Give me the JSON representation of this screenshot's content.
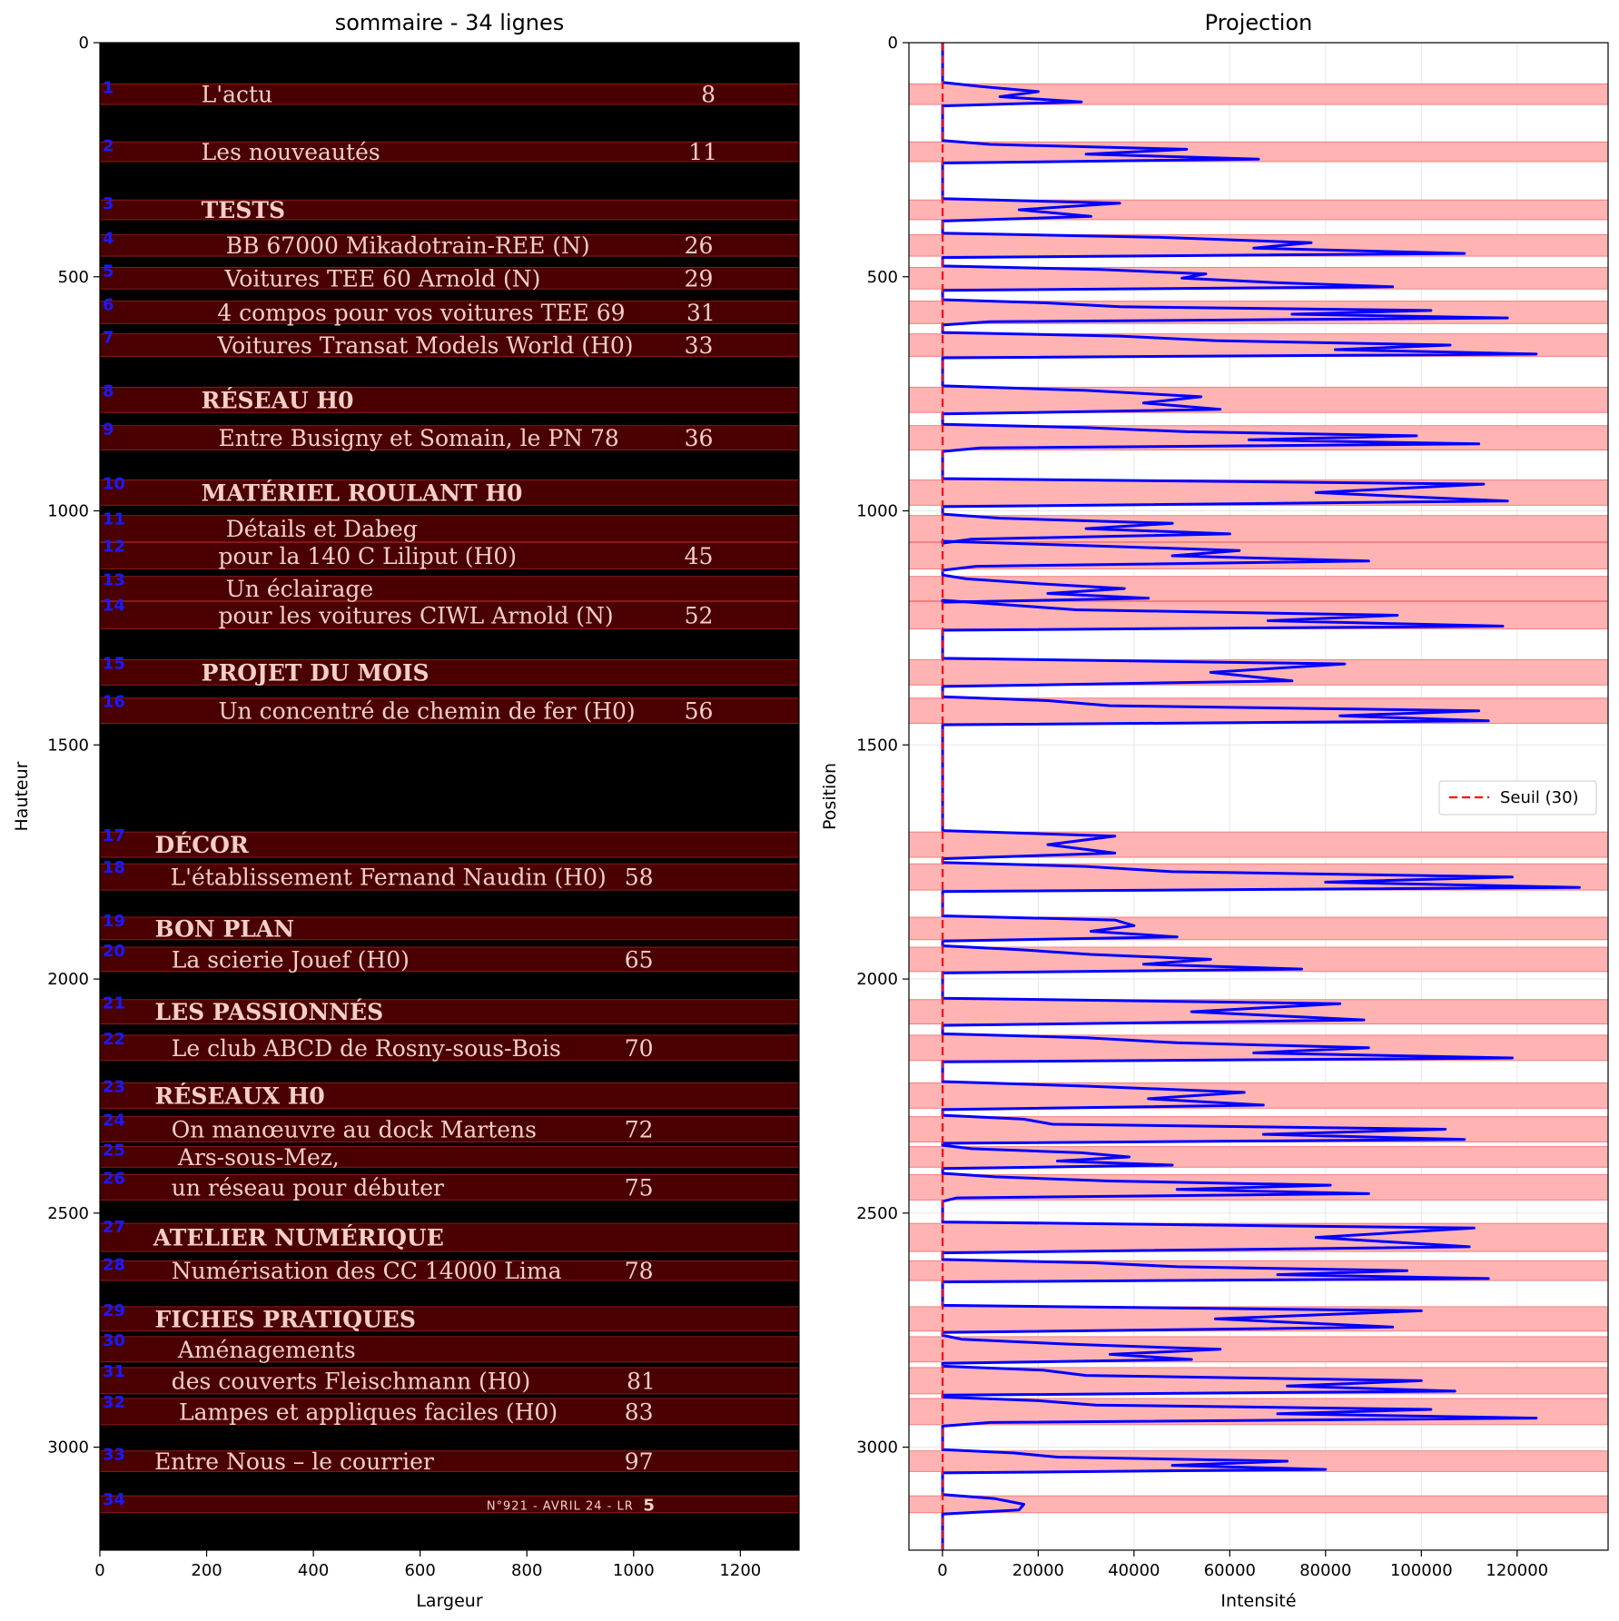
{
  "chart_data": [
    {
      "type": "image",
      "title": "sommaire - 34 lignes",
      "xlabel": "Largeur",
      "ylabel": "Hauteur",
      "xlim": [
        0,
        1310
      ],
      "ylim": [
        3220,
        0
      ],
      "xticks": [
        0,
        200,
        400,
        600,
        800,
        1000,
        1200
      ],
      "yticks": [
        0,
        500,
        1000,
        1500,
        2000,
        2500,
        3000
      ],
      "bands": [
        [
          88,
          132
        ],
        [
          212,
          254
        ],
        [
          336,
          378
        ],
        [
          410,
          456
        ],
        [
          480,
          526
        ],
        [
          552,
          600
        ],
        [
          622,
          670
        ],
        [
          736,
          790
        ],
        [
          818,
          870
        ],
        [
          934,
          988
        ],
        [
          1010,
          1066
        ],
        [
          1068,
          1124
        ],
        [
          1140,
          1192
        ],
        [
          1194,
          1252
        ],
        [
          1318,
          1372
        ],
        [
          1400,
          1454
        ],
        [
          1686,
          1740
        ],
        [
          1754,
          1810
        ],
        [
          1868,
          1916
        ],
        [
          1932,
          1984
        ],
        [
          2044,
          2096
        ],
        [
          2120,
          2174
        ],
        [
          2222,
          2276
        ],
        [
          2294,
          2348
        ],
        [
          2358,
          2402
        ],
        [
          2418,
          2472
        ],
        [
          2522,
          2582
        ],
        [
          2602,
          2644
        ],
        [
          2700,
          2752
        ],
        [
          2764,
          2818
        ],
        [
          2830,
          2886
        ],
        [
          2896,
          2952
        ],
        [
          3008,
          3052
        ],
        [
          3104,
          3140
        ]
      ],
      "line_numbers": [
        "1",
        "2",
        "3",
        "4",
        "5",
        "6",
        "7",
        "8",
        "9",
        "10",
        "11",
        "12",
        "13",
        "14",
        "15",
        "16",
        "17",
        "18",
        "19",
        "20",
        "21",
        "22",
        "23",
        "24",
        "25",
        "26",
        "27",
        "28",
        "29",
        "30",
        "31",
        "32",
        "33",
        "34"
      ],
      "entries": [
        {
          "line": 1,
          "text": "L'actu",
          "page": "8",
          "bold": false,
          "x": 190,
          "px": 1140
        },
        {
          "line": 2,
          "text": "Les nouveautés",
          "page": "11",
          "bold": false,
          "x": 190,
          "px": 1130
        },
        {
          "line": 3,
          "text": "TESTS",
          "page": "",
          "bold": true,
          "x": 190,
          "px": 0
        },
        {
          "line": 4,
          "text": "BB 67000 Mikadotrain-REE (N)",
          "page": "26",
          "bold": false,
          "x": 236,
          "px": 1122
        },
        {
          "line": 5,
          "text": "Voitures TEE 60 Arnold (N)",
          "page": "29",
          "bold": false,
          "x": 234,
          "px": 1122
        },
        {
          "line": 6,
          "text": "4 compos pour vos voitures TEE 69",
          "page": "31",
          "bold": false,
          "x": 220,
          "px": 1126
        },
        {
          "line": 7,
          "text": "Voitures Transat Models World (H0)",
          "page": "33",
          "bold": false,
          "x": 220,
          "px": 1122
        },
        {
          "line": 8,
          "text": "RÉSEAU H0",
          "page": "",
          "bold": true,
          "x": 190,
          "px": 0
        },
        {
          "line": 9,
          "text": "Entre Busigny et Somain, le PN 78",
          "page": "36",
          "bold": false,
          "x": 222,
          "px": 1122
        },
        {
          "line": 10,
          "text": "MATÉRIEL ROULANT H0",
          "page": "",
          "bold": true,
          "x": 190,
          "px": 0
        },
        {
          "line": 11,
          "text": "Détails et Dabeg",
          "page": "",
          "bold": false,
          "x": 236,
          "px": 0
        },
        {
          "line": 12,
          "text": "pour la 140 C Liliput (H0)",
          "page": "45",
          "bold": false,
          "x": 222,
          "px": 1122
        },
        {
          "line": 13,
          "text": "Un éclairage",
          "page": "",
          "bold": false,
          "x": 236,
          "px": 0
        },
        {
          "line": 14,
          "text": "pour les voitures CIWL Arnold (N)",
          "page": "52",
          "bold": false,
          "x": 222,
          "px": 1122
        },
        {
          "line": 15,
          "text": "PROJET DU MOIS",
          "page": "",
          "bold": true,
          "x": 190,
          "px": 0
        },
        {
          "line": 16,
          "text": "Un concentré de chemin de fer (H0)",
          "page": "56",
          "bold": false,
          "x": 222,
          "px": 1122
        },
        {
          "line": 17,
          "text": "DÉCOR",
          "page": "",
          "bold": true,
          "x": 103,
          "px": 0
        },
        {
          "line": 18,
          "text": "L'établissement Fernand Naudin (H0)",
          "page": "58",
          "bold": false,
          "x": 132,
          "px": 1010
        },
        {
          "line": 19,
          "text": "BON PLAN",
          "page": "",
          "bold": true,
          "x": 103,
          "px": 0
        },
        {
          "line": 20,
          "text": "La scierie Jouef (H0)",
          "page": "65",
          "bold": false,
          "x": 134,
          "px": 1010
        },
        {
          "line": 21,
          "text": "LES PASSIONNÉS",
          "page": "",
          "bold": true,
          "x": 103,
          "px": 0
        },
        {
          "line": 22,
          "text": "Le club ABCD de Rosny-sous-Bois",
          "page": "70",
          "bold": false,
          "x": 134,
          "px": 1010
        },
        {
          "line": 23,
          "text": "RÉSEAUX H0",
          "page": "",
          "bold": true,
          "x": 103,
          "px": 0
        },
        {
          "line": 24,
          "text": "On manœuvre au dock Martens",
          "page": "72",
          "bold": false,
          "x": 134,
          "px": 1010
        },
        {
          "line": 25,
          "text": "Ars-sous-Mez,",
          "page": "",
          "bold": false,
          "x": 146,
          "px": 0
        },
        {
          "line": 26,
          "text": "un réseau pour débuter",
          "page": "75",
          "bold": false,
          "x": 134,
          "px": 1010
        },
        {
          "line": 27,
          "text": "ATELIER NUMÉRIQUE",
          "page": "",
          "bold": true,
          "x": 100,
          "px": 0
        },
        {
          "line": 28,
          "text": "Numérisation des CC 14000 Lima",
          "page": "78",
          "bold": false,
          "x": 134,
          "px": 1010
        },
        {
          "line": 29,
          "text": "FICHES PRATIQUES",
          "page": "",
          "bold": true,
          "x": 103,
          "px": 0
        },
        {
          "line": 30,
          "text": "Aménagements",
          "page": "",
          "bold": false,
          "x": 146,
          "px": 0
        },
        {
          "line": 31,
          "text": "des couverts Fleischmann (H0)",
          "page": "81",
          "bold": false,
          "x": 134,
          "px": 1014
        },
        {
          "line": 32,
          "text": "Lampes et appliques faciles (H0)",
          "page": "83",
          "bold": false,
          "x": 148,
          "px": 1010
        },
        {
          "line": 33,
          "text": "Entre Nous – le courrier",
          "page": "97",
          "bold": false,
          "x": 102,
          "px": 1010
        }
      ],
      "footer_text": "N°921 - AVRIL 24 - LR",
      "footer_page": "5"
    },
    {
      "type": "line",
      "title": "Projection",
      "xlabel": "Intensité",
      "ylabel": "Position",
      "xlim": [
        -7000,
        139000
      ],
      "ylim": [
        3220,
        0
      ],
      "xticks": [
        0,
        20000,
        40000,
        60000,
        80000,
        100000,
        120000
      ],
      "yticks": [
        0,
        500,
        1000,
        1500,
        2000,
        2500,
        3000
      ],
      "grid": true,
      "legend": {
        "label": "Seuil (30)",
        "placement": "center-right"
      },
      "threshold": 30,
      "peaks": [
        [
          [
            88,
            132
          ],
          [
            8000,
            20000,
            12000,
            29000
          ]
        ],
        [
          [
            212,
            254
          ],
          [
            10000,
            51000,
            30000,
            66000
          ]
        ],
        [
          [
            336,
            378
          ],
          [
            37000,
            16000,
            31000
          ]
        ],
        [
          [
            410,
            456
          ],
          [
            45000,
            77000,
            65000,
            109000
          ]
        ],
        [
          [
            480,
            526
          ],
          [
            33000,
            55000,
            50000,
            69000,
            94000
          ]
        ],
        [
          [
            552,
            600
          ],
          [
            22000,
            37000,
            102000,
            73000,
            118000,
            10000
          ]
        ],
        [
          [
            622,
            670
          ],
          [
            37000,
            57000,
            106000,
            82000,
            124000
          ]
        ],
        [
          [
            736,
            790
          ],
          [
            30000,
            54000,
            42000,
            58000
          ]
        ],
        [
          [
            818,
            870
          ],
          [
            30000,
            51000,
            99000,
            64000,
            112000,
            8000
          ]
        ],
        [
          [
            934,
            988
          ],
          [
            113000,
            78000,
            118000
          ]
        ],
        [
          [
            1010,
            1066
          ],
          [
            12000,
            48000,
            30000,
            60000,
            6000
          ]
        ],
        [
          [
            1068,
            1124
          ],
          [
            28000,
            62000,
            48000,
            89000,
            7000
          ]
        ],
        [
          [
            1140,
            1192
          ],
          [
            5000,
            20000,
            38000,
            22000,
            43000
          ]
        ],
        [
          [
            1194,
            1252
          ],
          [
            12000,
            28000,
            95000,
            68000,
            117000
          ]
        ],
        [
          [
            1318,
            1372
          ],
          [
            84000,
            56000,
            73000
          ]
        ],
        [
          [
            1400,
            1454
          ],
          [
            22000,
            35000,
            112000,
            83000,
            114000
          ]
        ],
        [
          [
            1686,
            1740
          ],
          [
            36000,
            22000,
            36000
          ]
        ],
        [
          [
            1754,
            1810
          ],
          [
            30000,
            48000,
            119000,
            80000,
            133000
          ]
        ],
        [
          [
            1868,
            1916
          ],
          [
            36000,
            40000,
            31000,
            49000
          ]
        ],
        [
          [
            1932,
            1984
          ],
          [
            16000,
            31000,
            56000,
            42000,
            75000
          ]
        ],
        [
          [
            2044,
            2096
          ],
          [
            83000,
            52000,
            88000
          ]
        ],
        [
          [
            2120,
            2174
          ],
          [
            30000,
            49000,
            89000,
            65000,
            119000
          ]
        ],
        [
          [
            2222,
            2276
          ],
          [
            30000,
            63000,
            43000,
            67000
          ]
        ],
        [
          [
            2294,
            2348
          ],
          [
            17000,
            23000,
            105000,
            67000,
            109000
          ]
        ],
        [
          [
            2358,
            2402
          ],
          [
            6000,
            29000,
            39000,
            24000,
            48000
          ]
        ],
        [
          [
            2418,
            2472
          ],
          [
            11000,
            35000,
            81000,
            49000,
            89000,
            3000
          ]
        ],
        [
          [
            2522,
            2582
          ],
          [
            111000,
            78000,
            110000
          ]
        ],
        [
          [
            2602,
            2644
          ],
          [
            32000,
            49000,
            97000,
            70000,
            114000
          ]
        ],
        [
          [
            2700,
            2752
          ],
          [
            100000,
            57000,
            94000
          ]
        ],
        [
          [
            2764,
            2818
          ],
          [
            4000,
            27000,
            58000,
            35000,
            52000
          ]
        ],
        [
          [
            2830,
            2886
          ],
          [
            21000,
            30000,
            100000,
            72000,
            107000
          ]
        ],
        [
          [
            2896,
            2952
          ],
          [
            20000,
            32000,
            102000,
            70000,
            124000,
            10000
          ]
        ],
        [
          [
            3008,
            3052
          ],
          [
            15000,
            24000,
            72000,
            48000,
            80000
          ]
        ],
        [
          [
            3104,
            3140
          ],
          [
            11000,
            17000,
            16000
          ]
        ]
      ]
    }
  ]
}
